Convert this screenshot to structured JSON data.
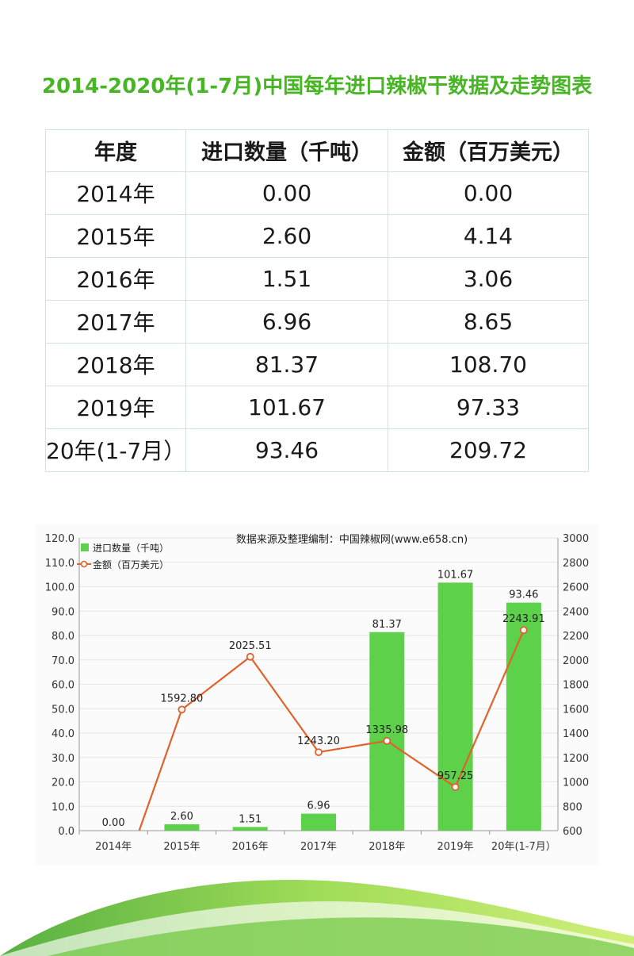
{
  "title": "2014-2020年(1-7月)中国每年进口辣椒干数据及走势图表",
  "table": {
    "headers": [
      "年度",
      "进口数量（千吨）",
      "金额（百万美元）"
    ],
    "rows": [
      [
        "2014年",
        "0.00",
        "0.00"
      ],
      [
        "2015年",
        "2.60",
        "4.14"
      ],
      [
        "2016年",
        "1.51",
        "3.06"
      ],
      [
        "2017年",
        "6.96",
        "8.65"
      ],
      [
        "2018年",
        "81.37",
        "108.70"
      ],
      [
        "2019年",
        "101.67",
        "97.33"
      ],
      [
        "20年(1-7月）",
        "93.46",
        "209.72"
      ]
    ]
  },
  "chart_data": {
    "type": "bar",
    "title": "数据来源及整理编制：中国辣椒网(www.e658.cn)",
    "categories": [
      "2014年",
      "2015年",
      "2016年",
      "2017年",
      "2018年",
      "2019年",
      "20年(1-7月）"
    ],
    "series": [
      {
        "name": "进口数量（千吨）",
        "type": "bar",
        "axis": "left",
        "values": [
          0.0,
          2.6,
          1.51,
          6.96,
          81.37,
          101.67,
          93.46
        ],
        "labels": [
          "0.00",
          "2.60",
          "1.51",
          "6.96",
          "81.37",
          "101.67",
          "93.46"
        ],
        "color": "#5ed14a"
      },
      {
        "name": "金额（百万美元）",
        "type": "line",
        "axis": "right",
        "values": [
          0,
          1592.8,
          2025.51,
          1243.2,
          1335.98,
          957.25,
          2243.91
        ],
        "labels": [
          "",
          "1592.80",
          "2025.51",
          "1243.20",
          "1335.98",
          "957.25",
          "2243.91"
        ],
        "color": "#e0622c"
      }
    ],
    "yleft": {
      "min": 0,
      "max": 120,
      "ticks": [
        "0.0",
        "10.0",
        "20.0",
        "30.0",
        "40.0",
        "50.0",
        "60.0",
        "70.0",
        "80.0",
        "90.0",
        "100.0",
        "110.0",
        "120.0"
      ]
    },
    "yright": {
      "min": 600,
      "max": 3000,
      "ticks": [
        "600",
        "800",
        "1000",
        "1200",
        "1400",
        "1600",
        "1800",
        "2000",
        "2200",
        "2400",
        "2600",
        "2800",
        "3000"
      ]
    },
    "grid": true,
    "legend": "top-left"
  },
  "colors": {
    "title": "#47b524",
    "bar": "#5ed14a",
    "line": "#e0622c",
    "grid": "#e6e6e6"
  }
}
